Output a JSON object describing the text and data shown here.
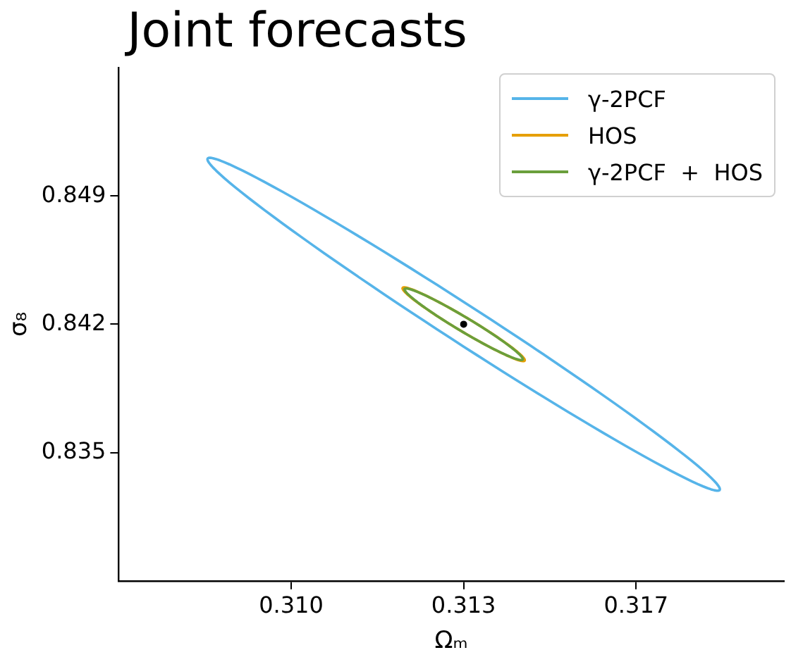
{
  "chart_data": {
    "type": "line",
    "title": "Joint forecasts",
    "xlabel": "Ωₘ",
    "ylabel": "σ₈",
    "xlim": [
      0.3065,
      0.32
    ],
    "ylim": [
      0.828,
      0.856
    ],
    "xticks": [
      {
        "value": 0.31,
        "label": "0.310"
      },
      {
        "value": 0.3135,
        "label": "0.313"
      },
      {
        "value": 0.317,
        "label": "0.317"
      }
    ],
    "yticks": [
      0.849,
      0.842,
      0.835
    ],
    "grid": false,
    "legend": "top right",
    "line_style": "solid",
    "series": [
      {
        "name": "γ-2PCF",
        "color": "#56b4e9"
      },
      {
        "name": "HOS",
        "color": "#e69f00"
      },
      {
        "name": "γ-2PCF  +  HOS",
        "color": "#6a9f3c"
      },
      {
        "type": "scatter",
        "marker": "circle",
        "color": "#000000",
        "x": [
          0.3135
        ],
        "values": [
          0.842
        ]
      }
    ]
  }
}
